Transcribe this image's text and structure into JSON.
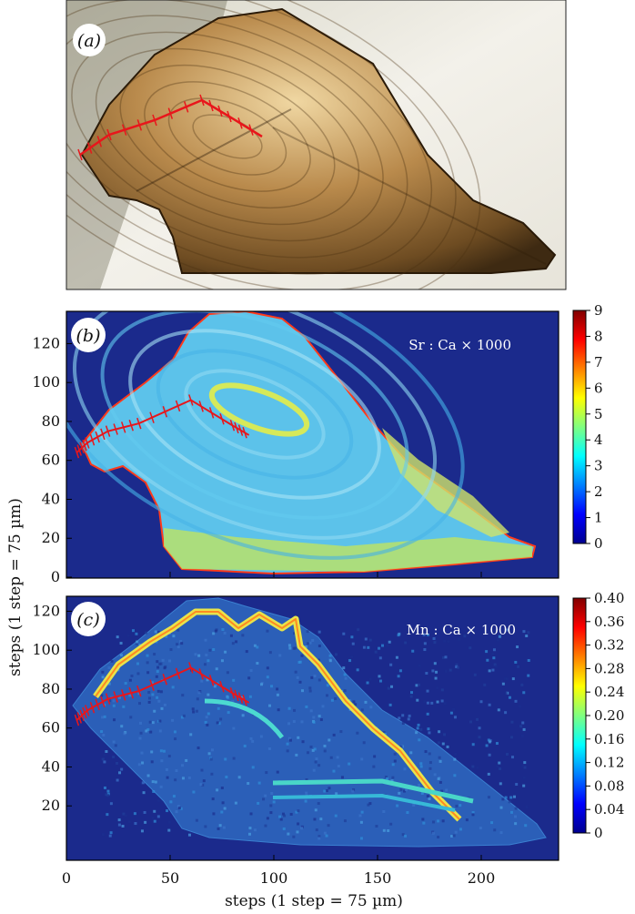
{
  "panels": [
    {
      "id": "a",
      "label": "(a)",
      "kind": "photo"
    },
    {
      "id": "b",
      "label": "(b)",
      "kind": "heatmap",
      "map_title": "Sr : Ca × 1000",
      "colorbar": {
        "min": 0,
        "max": 9,
        "ticks": [
          "0",
          "1",
          "2",
          "3",
          "4",
          "5",
          "6",
          "7",
          "8",
          "9"
        ]
      },
      "yticks": [
        "0",
        "20",
        "40",
        "60",
        "80",
        "100",
        "120"
      ]
    },
    {
      "id": "c",
      "label": "(c)",
      "kind": "heatmap",
      "map_title": "Mn : Ca × 1000",
      "colorbar": {
        "min": 0,
        "max": 0.4,
        "ticks": [
          "0",
          "0.04",
          "0.08",
          "0.12",
          "0.16",
          "0.20",
          "0.24",
          "0.28",
          "0.32",
          "0.36",
          "0.40"
        ]
      },
      "yticks": [
        "20",
        "40",
        "60",
        "80",
        "100",
        "120"
      ]
    }
  ],
  "x_axis": {
    "label": "steps (1 step = 75 µm)",
    "ticks": [
      "0",
      "50",
      "100",
      "150",
      "200"
    ]
  },
  "y_axis": {
    "label": "steps (1 step = 75 µm)"
  },
  "chart_data": [
    {
      "type": "heatmap",
      "title": "Sr : Ca × 1000",
      "xlabel": "steps (1 step = 75 µm)",
      "ylabel": "steps (1 step = 75 µm)",
      "xlim": [
        0,
        240
      ],
      "ylim": [
        0,
        135
      ],
      "color_range": [
        0,
        9
      ],
      "transect": [
        [
          5,
          64
        ],
        [
          10,
          69
        ],
        [
          20,
          75
        ],
        [
          35,
          79
        ],
        [
          60,
          91
        ],
        [
          80,
          78
        ],
        [
          88,
          73
        ]
      ]
    },
    {
      "type": "heatmap",
      "title": "Mn : Ca × 1000",
      "xlabel": "steps (1 step = 75 µm)",
      "ylabel": "steps (1 step = 75 µm)",
      "xlim": [
        0,
        240
      ],
      "ylim": [
        0,
        135
      ],
      "color_range": [
        0,
        0.4
      ],
      "transect": [
        [
          5,
          64
        ],
        [
          10,
          69
        ],
        [
          20,
          75
        ],
        [
          35,
          79
        ],
        [
          60,
          91
        ],
        [
          80,
          78
        ],
        [
          88,
          73
        ]
      ]
    }
  ],
  "colors": {
    "background_map": "#1b2a8c",
    "transect": "#e8161b",
    "otolith_base_sr": "#5cc2ea",
    "otolith_base_mn": "#2b5fb8"
  }
}
